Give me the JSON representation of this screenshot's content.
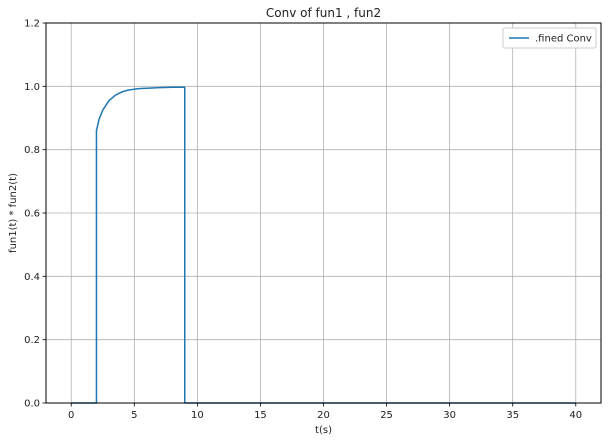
{
  "chart_data": {
    "type": "line",
    "title": "Conv of fun1 , fun2",
    "xlabel": "t(s)",
    "ylabel": "fun1(t) * fun2(t)",
    "xlim": [
      -2,
      42
    ],
    "ylim": [
      0,
      1.2
    ],
    "xticks": [
      0,
      5,
      10,
      15,
      20,
      25,
      30,
      35,
      40
    ],
    "yticks": [
      0.0,
      0.2,
      0.4,
      0.6,
      0.8,
      1.0,
      1.2
    ],
    "xtick_labels": [
      "0",
      "5",
      "10",
      "15",
      "20",
      "25",
      "30",
      "35",
      "40"
    ],
    "ytick_labels": [
      "0.0",
      "0.2",
      "0.4",
      "0.6",
      "0.8",
      "1.0",
      "1.2"
    ],
    "grid": true,
    "legend_position": "top-right",
    "series": [
      {
        "name": ".fined Conv",
        "color": "#1f77b4",
        "x": [
          0,
          2.0,
          2.0,
          2.2,
          2.5,
          3.0,
          3.5,
          4.0,
          4.5,
          5.0,
          5.5,
          6.0,
          7.0,
          8.0,
          9.0,
          9.0,
          40
        ],
        "y": [
          0,
          0,
          0.86,
          0.895,
          0.925,
          0.955,
          0.972,
          0.982,
          0.988,
          0.991,
          0.993,
          0.994,
          0.996,
          0.997,
          0.997,
          0,
          0
        ]
      }
    ]
  }
}
